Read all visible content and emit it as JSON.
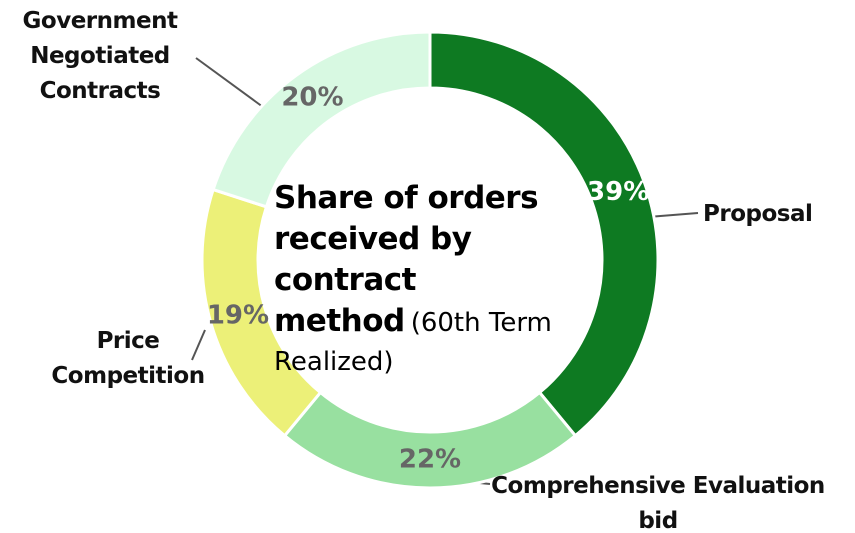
{
  "chart_data": {
    "type": "donut",
    "title": "Share of orders received by contract method",
    "subtitle": "(60th Term Realized)",
    "categories": [
      "Proposal",
      "Comprehensive Evaluation bid",
      "Price Competition",
      "Government Negotiated Contracts"
    ],
    "values": [
      39,
      22,
      19,
      20
    ],
    "value_labels": [
      "39%",
      "22%",
      "19%",
      "20%"
    ],
    "colors": [
      "#0e7a22",
      "#98e0a0",
      "#ecf078",
      "#d8f9e2"
    ],
    "value_label_colors": [
      "#ffffff",
      "#666666",
      "#666666",
      "#666666"
    ]
  }
}
